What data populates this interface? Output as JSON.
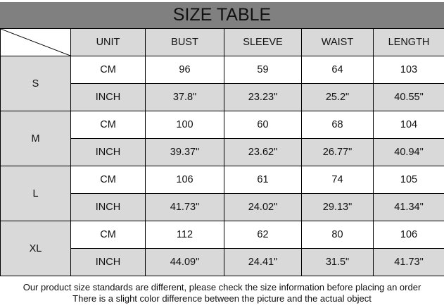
{
  "title": "SIZE TABLE",
  "headers": [
    "UNIT",
    "BUST",
    "SLEEVE",
    "WAIST",
    "LENGTH"
  ],
  "sizes": [
    {
      "size": "S",
      "rows": [
        [
          "CM",
          "96",
          "59",
          "64",
          "103"
        ],
        [
          "INCH",
          "37.8\"",
          "23.23\"",
          "25.2\"",
          "40.55\""
        ]
      ]
    },
    {
      "size": "M",
      "rows": [
        [
          "CM",
          "100",
          "60",
          "68",
          "104"
        ],
        [
          "INCH",
          "39.37\"",
          "23.62\"",
          "26.77\"",
          "40.94\""
        ]
      ]
    },
    {
      "size": "L",
      "rows": [
        [
          "CM",
          "106",
          "61",
          "74",
          "105"
        ],
        [
          "INCH",
          "41.73\"",
          "24.02\"",
          "29.13\"",
          "41.34\""
        ]
      ]
    },
    {
      "size": "XL",
      "rows": [
        [
          "CM",
          "112",
          "62",
          "80",
          "106"
        ],
        [
          "INCH",
          "44.09\"",
          "24.41\"",
          "31.5\"",
          "41.73\""
        ]
      ]
    }
  ],
  "notes": [
    "Our product size standards are different, please check the size information before placing an order",
    "There is a slight color difference between the picture and the actual object"
  ]
}
